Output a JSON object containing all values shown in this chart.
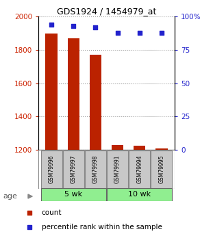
{
  "title": "GDS1924 / 1454979_at",
  "samples": [
    "GSM79996",
    "GSM79997",
    "GSM79998",
    "GSM79991",
    "GSM79994",
    "GSM79995"
  ],
  "counts": [
    1900,
    1870,
    1770,
    1230,
    1225,
    1210
  ],
  "percentiles": [
    94,
    93,
    92,
    88,
    88,
    88
  ],
  "ymin": 1200,
  "ymax": 2000,
  "yticks": [
    1200,
    1400,
    1600,
    1800,
    2000
  ],
  "pct_min": 0,
  "pct_max": 100,
  "pct_ticks": [
    0,
    25,
    50,
    75,
    100
  ],
  "pct_tick_labels": [
    "0",
    "25",
    "50",
    "75",
    "100%"
  ],
  "bar_color": "#BB2200",
  "dot_color": "#2222CC",
  "grid_color": "#999999",
  "left_tick_color": "#CC2200",
  "right_tick_color": "#2222CC",
  "sample_box_color": "#C8C8C8",
  "sample_box_edge": "#888888",
  "group_color": "#90EE90",
  "group_edge": "#666666",
  "bar_width": 0.55,
  "group1_label": "5 wk",
  "group2_label": "10 wk",
  "age_label": "age",
  "legend_count": "count",
  "legend_pct": "percentile rank within the sample"
}
